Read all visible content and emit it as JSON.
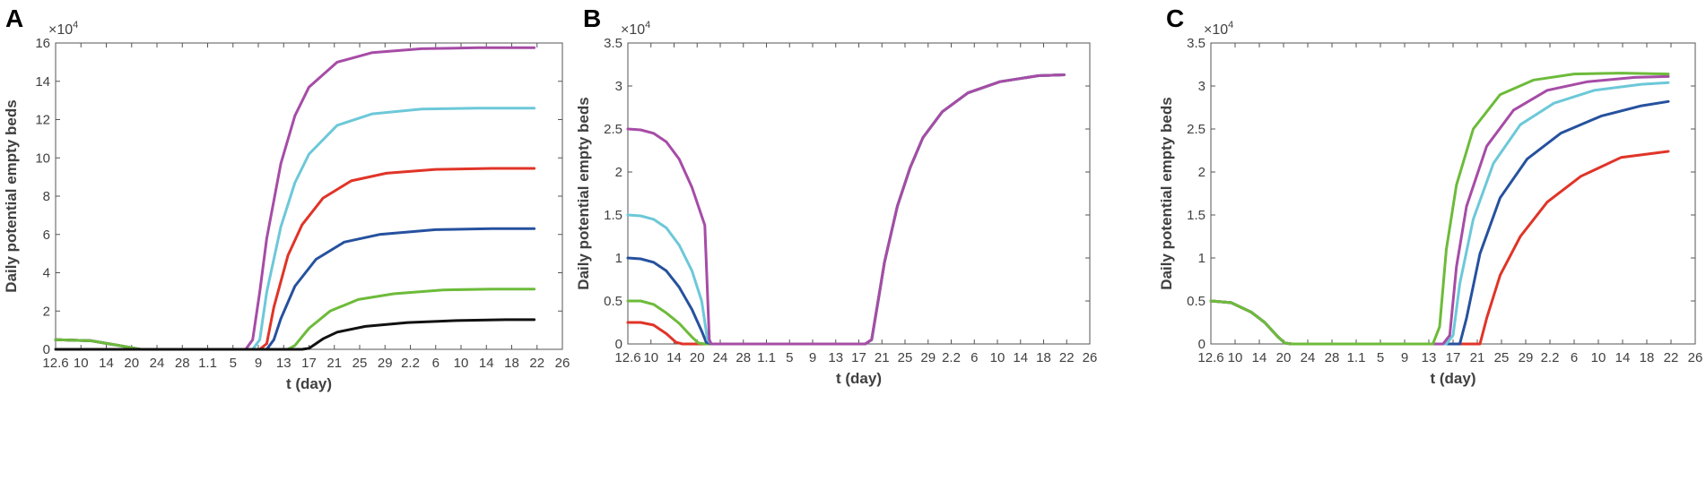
{
  "chart_data": [
    {
      "panel": "A",
      "type": "line",
      "ylabel": "Daily potential empty beds",
      "xlabel": "t (day)",
      "y_exponent_base": "×10",
      "y_exponent_power": "4",
      "ylim": [
        0,
        16
      ],
      "yticks": [
        "0",
        "2",
        "4",
        "6",
        "8",
        "10",
        "12",
        "14",
        "16"
      ],
      "xlim": [
        0,
        72
      ],
      "xticks": [
        "12.6",
        "10",
        "14",
        "20",
        "24",
        "28",
        "1.1",
        "5",
        "9",
        "13",
        "17",
        "21",
        "25",
        "29",
        "2.2",
        "6",
        "10",
        "14",
        "18",
        "22",
        "26"
      ],
      "series": [
        {
          "color": "#a64ca6",
          "x": [
            0,
            5,
            9,
            12,
            15,
            18,
            22,
            25,
            27,
            28,
            29,
            30,
            32,
            34,
            36,
            40,
            45,
            52,
            60,
            68
          ],
          "values": [
            0.5,
            0.45,
            0.2,
            0,
            0,
            0,
            0,
            0,
            0,
            0.5,
            3.0,
            5.8,
            9.7,
            12.2,
            13.7,
            15.0,
            15.5,
            15.7,
            15.75,
            15.75
          ]
        },
        {
          "color": "#6cc8d8",
          "x": [
            0,
            5,
            9,
            12,
            15,
            18,
            22,
            26,
            28,
            29,
            30,
            32,
            34,
            36,
            40,
            45,
            52,
            60,
            68
          ],
          "values": [
            0.5,
            0.45,
            0.2,
            0,
            0,
            0,
            0,
            0,
            0,
            0.5,
            3.0,
            6.4,
            8.7,
            10.2,
            11.7,
            12.3,
            12.55,
            12.6,
            12.6
          ]
        },
        {
          "color": "#e03428",
          "x": [
            0,
            5,
            9,
            12,
            15,
            18,
            22,
            26,
            28,
            29,
            30,
            31,
            33,
            35,
            38,
            42,
            47,
            54,
            62,
            68
          ],
          "values": [
            0.5,
            0.45,
            0.2,
            0,
            0,
            0,
            0,
            0,
            0,
            0,
            0.3,
            2.2,
            4.9,
            6.5,
            7.9,
            8.8,
            9.2,
            9.4,
            9.45,
            9.45
          ]
        },
        {
          "color": "#26519e",
          "x": [
            0,
            5,
            9,
            12,
            15,
            18,
            22,
            26,
            29,
            30,
            31,
            32,
            34,
            37,
            41,
            46,
            54,
            62,
            68
          ],
          "values": [
            0.5,
            0.45,
            0.2,
            0,
            0,
            0,
            0,
            0,
            0,
            0,
            0.5,
            1.6,
            3.3,
            4.7,
            5.6,
            6.0,
            6.25,
            6.3,
            6.3
          ]
        },
        {
          "color": "#6dbb3a",
          "x": [
            0,
            5,
            9,
            12,
            15,
            20,
            26,
            30,
            33,
            34,
            36,
            39,
            43,
            48,
            55,
            62,
            68
          ],
          "values": [
            0.5,
            0.45,
            0.2,
            0,
            0,
            0,
            0,
            0,
            0,
            0.2,
            1.1,
            2.0,
            2.6,
            2.9,
            3.1,
            3.15,
            3.15
          ]
        },
        {
          "color": "#111111",
          "x": [
            0,
            5,
            9,
            12,
            20,
            30,
            35,
            36,
            37,
            38,
            40,
            44,
            50,
            57,
            64,
            68
          ],
          "values": [
            0,
            0,
            0,
            0,
            0,
            0,
            0,
            0.05,
            0.3,
            0.55,
            0.9,
            1.2,
            1.4,
            1.5,
            1.55,
            1.55
          ]
        }
      ]
    },
    {
      "panel": "B",
      "type": "line",
      "ylabel": "Daily potential empty beds",
      "xlabel": "t (day)",
      "y_exponent_base": "×10",
      "y_exponent_power": "4",
      "ylim": [
        0,
        3.5
      ],
      "yticks": [
        "0",
        "0.5",
        "1",
        "1.5",
        "2",
        "2.5",
        "3",
        "3.5"
      ],
      "xlim": [
        0,
        72
      ],
      "xticks": [
        "12.6",
        "10",
        "14",
        "20",
        "24",
        "28",
        "1.1",
        "5",
        "9",
        "13",
        "17",
        "21",
        "25",
        "29",
        "2.2",
        "6",
        "10",
        "14",
        "18",
        "22",
        "26"
      ],
      "series": [
        {
          "color": "#e03428",
          "x": [
            0,
            2,
            4,
            6,
            7.5,
            8.5,
            10,
            20,
            30,
            37,
            38,
            39,
            40,
            42,
            44,
            46,
            49,
            53,
            58,
            64,
            68
          ],
          "values": [
            0.25,
            0.25,
            0.22,
            0.12,
            0.02,
            0,
            0,
            0,
            0,
            0,
            0.05,
            0.5,
            0.95,
            1.6,
            2.05,
            2.4,
            2.7,
            2.92,
            3.05,
            3.12,
            3.13
          ]
        },
        {
          "color": "#6dbb3a",
          "x": [
            0,
            2,
            4,
            6,
            8,
            10,
            11,
            12,
            20,
            30,
            37,
            38,
            39,
            40,
            42,
            44,
            46,
            49,
            53,
            58,
            64,
            68
          ],
          "values": [
            0.5,
            0.5,
            0.46,
            0.36,
            0.24,
            0.08,
            0.01,
            0,
            0,
            0,
            0,
            0.05,
            0.5,
            0.95,
            1.6,
            2.05,
            2.4,
            2.7,
            2.92,
            3.05,
            3.12,
            3.13
          ]
        },
        {
          "color": "#26519e",
          "x": [
            0,
            2,
            4,
            6,
            8,
            10,
            11.5,
            12.2,
            13,
            20,
            30,
            37,
            38,
            39,
            40,
            42,
            44,
            46,
            49,
            53,
            58,
            64,
            68
          ],
          "values": [
            1.0,
            0.99,
            0.95,
            0.85,
            0.66,
            0.4,
            0.15,
            0.02,
            0,
            0,
            0,
            0,
            0.05,
            0.5,
            0.95,
            1.6,
            2.05,
            2.4,
            2.7,
            2.92,
            3.05,
            3.12,
            3.13
          ]
        },
        {
          "color": "#6cc8d8",
          "x": [
            0,
            2,
            4,
            6,
            8,
            10,
            11.5,
            12.4,
            13,
            20,
            30,
            37,
            38,
            39,
            40,
            42,
            44,
            46,
            49,
            53,
            58,
            64,
            68
          ],
          "values": [
            1.5,
            1.49,
            1.45,
            1.35,
            1.15,
            0.85,
            0.5,
            0.05,
            0,
            0,
            0,
            0,
            0.05,
            0.5,
            0.95,
            1.6,
            2.05,
            2.4,
            2.7,
            2.92,
            3.05,
            3.12,
            3.13
          ]
        },
        {
          "color": "#a64ca6",
          "x": [
            0,
            2,
            4,
            6,
            8,
            10,
            12,
            12.7,
            13,
            20,
            30,
            37,
            38,
            39,
            40,
            42,
            44,
            46,
            49,
            53,
            58,
            64,
            68
          ],
          "values": [
            2.5,
            2.49,
            2.45,
            2.35,
            2.15,
            1.82,
            1.38,
            0.05,
            0,
            0,
            0,
            0,
            0.05,
            0.5,
            0.95,
            1.6,
            2.05,
            2.4,
            2.7,
            2.92,
            3.05,
            3.12,
            3.13
          ]
        }
      ]
    },
    {
      "panel": "C",
      "type": "line",
      "ylabel": "Daily potential empty beds",
      "xlabel": "t (day)",
      "y_exponent_base": "×10",
      "y_exponent_power": "4",
      "ylim": [
        0,
        3.5
      ],
      "yticks": [
        "0",
        "0.5",
        "1",
        "1.5",
        "2",
        "2.5",
        "3",
        "3.5"
      ],
      "xlim": [
        0,
        72
      ],
      "xticks": [
        "12.6",
        "10",
        "14",
        "20",
        "24",
        "28",
        "1.1",
        "5",
        "9",
        "13",
        "17",
        "21",
        "25",
        "29",
        "2.2",
        "6",
        "10",
        "14",
        "18",
        "22",
        "26"
      ],
      "series": [
        {
          "color": "#e03428",
          "x": [
            0,
            3,
            6,
            8,
            10,
            11,
            12,
            20,
            30,
            39,
            40,
            41,
            43,
            46,
            50,
            55,
            61,
            68
          ],
          "values": [
            0.5,
            0.48,
            0.37,
            0.25,
            0.08,
            0.01,
            0,
            0,
            0,
            0,
            0,
            0.3,
            0.8,
            1.25,
            1.65,
            1.95,
            2.17,
            2.24
          ]
        },
        {
          "color": "#26519e",
          "x": [
            0,
            3,
            6,
            8,
            10,
            11,
            12,
            20,
            30,
            36,
            37,
            38,
            40,
            43,
            47,
            52,
            58,
            64,
            68
          ],
          "values": [
            0.5,
            0.48,
            0.37,
            0.25,
            0.08,
            0.01,
            0,
            0,
            0,
            0,
            0,
            0.3,
            1.05,
            1.7,
            2.15,
            2.45,
            2.65,
            2.77,
            2.82
          ]
        },
        {
          "color": "#6cc8d8",
          "x": [
            0,
            3,
            6,
            8,
            10,
            11,
            12,
            20,
            30,
            35,
            36,
            37,
            39,
            42,
            46,
            51,
            57,
            64,
            68
          ],
          "values": [
            0.5,
            0.48,
            0.37,
            0.25,
            0.08,
            0.01,
            0,
            0,
            0,
            0,
            0.1,
            0.7,
            1.45,
            2.1,
            2.55,
            2.8,
            2.95,
            3.02,
            3.04
          ]
        },
        {
          "color": "#a64ca6",
          "x": [
            0,
            3,
            6,
            8,
            10,
            11,
            12,
            20,
            30,
            34.5,
            35.5,
            36.5,
            38,
            41,
            45,
            50,
            56,
            63,
            68
          ],
          "values": [
            0.5,
            0.48,
            0.37,
            0.25,
            0.08,
            0.01,
            0,
            0,
            0,
            0,
            0.1,
            0.9,
            1.6,
            2.3,
            2.72,
            2.95,
            3.05,
            3.1,
            3.11
          ]
        },
        {
          "color": "#6dbb3a",
          "x": [
            0,
            3,
            6,
            8,
            10,
            11,
            12,
            20,
            30,
            33,
            34,
            35,
            36.5,
            39,
            43,
            48,
            54,
            61,
            68
          ],
          "values": [
            0.5,
            0.48,
            0.37,
            0.25,
            0.08,
            0.01,
            0,
            0,
            0,
            0,
            0.2,
            1.1,
            1.85,
            2.5,
            2.9,
            3.07,
            3.14,
            3.15,
            3.14
          ]
        }
      ]
    }
  ]
}
